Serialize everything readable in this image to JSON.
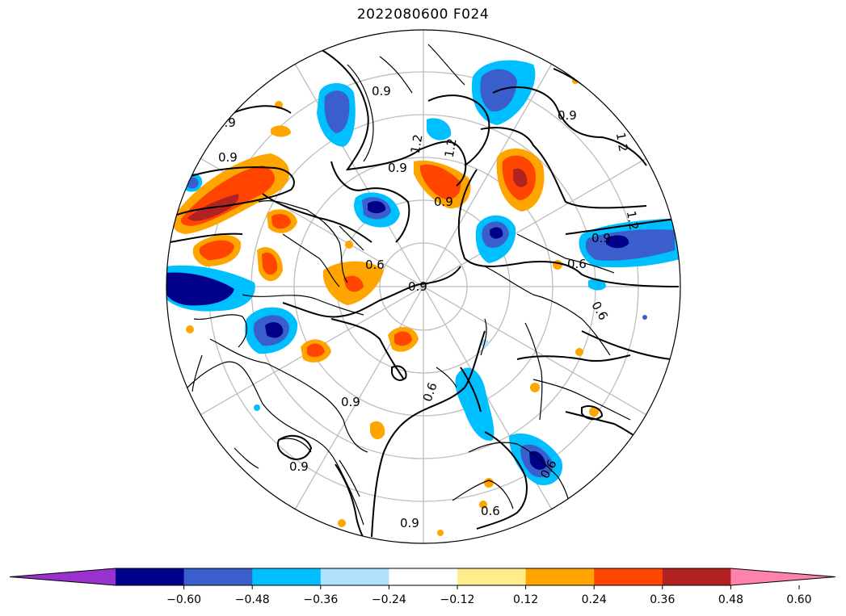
{
  "title": "2022080600 F024",
  "contour_labels": [
    "0.9",
    "1.2",
    "0.6"
  ],
  "colorbar": {
    "colors": [
      "#9932cc",
      "#00008b",
      "#3a5fcd",
      "#00bfff",
      "#b0e2ff",
      "#ffffff",
      "#ffec8b",
      "#ffa500",
      "#ff4500",
      "#b22222",
      "#ff82ab"
    ],
    "tick_labels": [
      "−0.60",
      "−0.48",
      "−0.36",
      "−0.24",
      "−0.12",
      "0.12",
      "0.24",
      "0.36",
      "0.48",
      "0.60"
    ]
  },
  "colors": {
    "dark_blue": "#00008b",
    "mid_blue": "#3a5fcd",
    "light_blue": "#00bfff",
    "pale_blue": "#b0e2ff",
    "yellow": "#ffec8b",
    "orange": "#ffa500",
    "red_orange": "#ff4500",
    "dark_red": "#b22222"
  }
}
